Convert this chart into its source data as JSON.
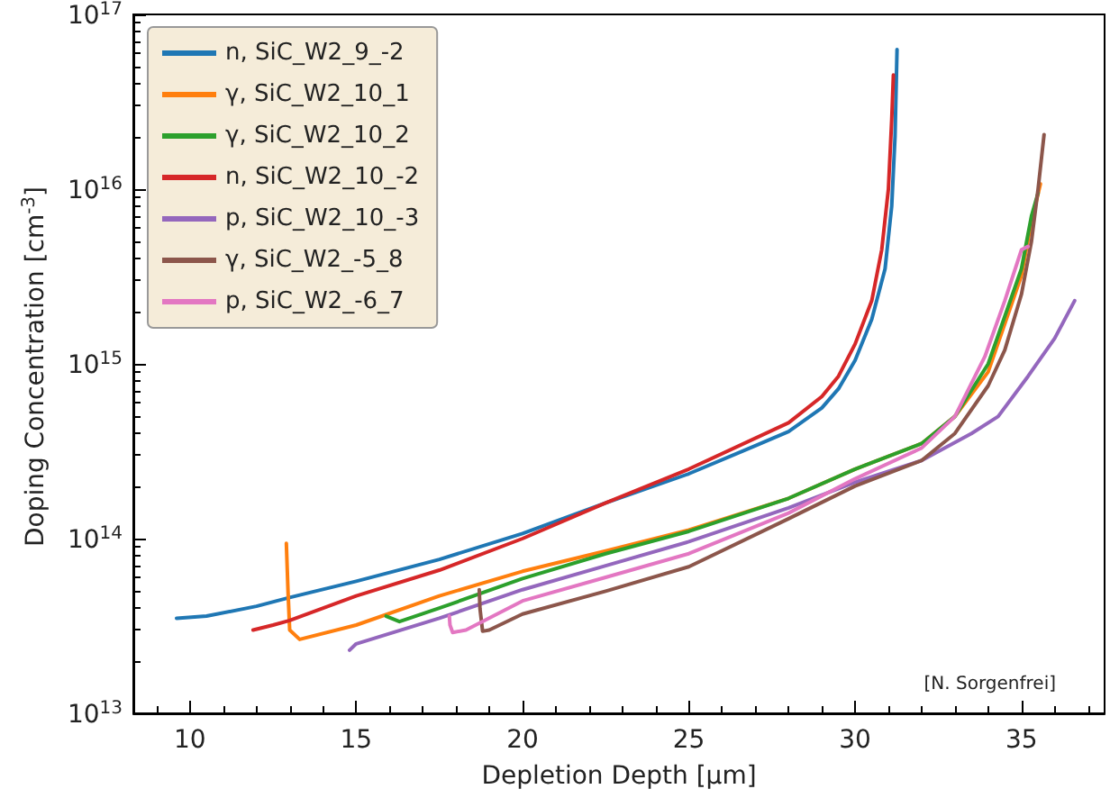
{
  "chart_data": {
    "type": "line",
    "xlabel": "Depletion Depth [µm]",
    "ylabel": "Doping Concentration [cm$^{-3}$]",
    "log": "y",
    "grid": false,
    "legend": "top left",
    "marker": "none",
    "line_style": "solid",
    "xlim": [
      8.3,
      37.5
    ],
    "xticks": [
      10,
      15,
      20,
      25,
      30,
      35
    ],
    "ylim": [
      10000000000000.0,
      1e+17
    ],
    "yticks": [
      {
        "value": 10000000000000.0,
        "label": "10$^{13}$"
      },
      {
        "value": 100000000000000.0,
        "label": "10$^{14}$"
      },
      {
        "value": 1000000000000000.0,
        "label": "10$^{15}$"
      },
      {
        "value": 1e+16,
        "label": "10$^{16}$"
      },
      {
        "value": 1e+17,
        "label": "10$^{17}$"
      }
    ],
    "annotations": [
      "[N. Sorgenfrei]"
    ],
    "series": [
      {
        "name": "n, SiC_W2_9_-2",
        "color": "#1f77b4",
        "x": [
          9.6,
          10.5,
          12,
          13,
          15,
          17.5,
          20,
          22.5,
          25,
          27,
          28,
          29,
          29.5,
          30,
          30.5,
          30.9,
          31.1,
          31.2,
          31.26
        ],
        "values": [
          35000000000000.0,
          36000000000000.0,
          41000000000000.0,
          46000000000000.0,
          57000000000000.0,
          76000000000000.0,
          107000000000000.0,
          160000000000000.0,
          235000000000000.0,
          340000000000000.0,
          410000000000000.0,
          560000000000000.0,
          720000000000000.0,
          1050000000000000.0,
          1800000000000000.0,
          3500000000000000.0,
          8000000000000000.0,
          2e+16,
          6.3e+16
        ]
      },
      {
        "name": "γ, SiC_W2_10_1",
        "color": "#ff7f0e",
        "x": [
          12.9,
          12.95,
          13.0,
          13.3,
          15,
          17.5,
          20,
          22.5,
          25,
          28,
          30,
          32,
          33,
          34,
          35,
          35.3,
          35.57
        ],
        "values": [
          94000000000000.0,
          50000000000000.0,
          30000000000000.0,
          26500000000000.0,
          32000000000000.0,
          47000000000000.0,
          65000000000000.0,
          85000000000000.0,
          112000000000000.0,
          170000000000000.0,
          250000000000000.0,
          350000000000000.0,
          500000000000000.0,
          900000000000000.0,
          3200000000000000.0,
          6500000000000000.0,
          1.07e+16
        ]
      },
      {
        "name": "γ, SiC_W2_10_2",
        "color": "#2ca02c",
        "x": [
          15.9,
          16.3,
          17.5,
          20,
          22.5,
          25,
          28,
          30,
          32,
          33,
          34,
          35,
          35.3,
          35.5
        ],
        "values": [
          36000000000000.0,
          33500000000000.0,
          40000000000000.0,
          59000000000000.0,
          82000000000000.0,
          110000000000000.0,
          170000000000000.0,
          250000000000000.0,
          350000000000000.0,
          500000000000000.0,
          1000000000000000.0,
          3500000000000000.0,
          7000000000000000.0,
          9500000000000000.0
        ]
      },
      {
        "name": "n, SiC_W2_10_-2",
        "color": "#d62728",
        "x": [
          11.9,
          12.5,
          13,
          15,
          17.5,
          20,
          22.5,
          25,
          28,
          29,
          29.5,
          30,
          30.5,
          30.8,
          31,
          31.1,
          31.15
        ],
        "values": [
          30000000000000.0,
          32000000000000.0,
          34000000000000.0,
          47000000000000.0,
          66000000000000.0,
          100000000000000.0,
          160000000000000.0,
          250000000000000.0,
          460000000000000.0,
          650000000000000.0,
          850000000000000.0,
          1300000000000000.0,
          2300000000000000.0,
          4500000000000000.0,
          1e+16,
          2.5e+16,
          4.5e+16
        ]
      },
      {
        "name": "p, SiC_W2_10_-3",
        "color": "#9467bd",
        "x": [
          14.8,
          15,
          17.5,
          20,
          22.5,
          25,
          28,
          30,
          32,
          33.5,
          34.3,
          35.2,
          36,
          36.6
        ],
        "values": [
          23000000000000.0,
          25000000000000.0,
          35000000000000.0,
          51000000000000.0,
          70000000000000.0,
          96000000000000.0,
          150000000000000.0,
          210000000000000.0,
          280000000000000.0,
          400000000000000.0,
          500000000000000.0,
          850000000000000.0,
          1400000000000000.0,
          2300000000000000.0
        ]
      },
      {
        "name": "γ, SiC_W2_-5_8",
        "color": "#8c564b",
        "x": [
          18.7,
          18.72,
          18.8,
          19,
          20,
          22.5,
          25,
          28,
          30,
          32,
          33,
          34,
          34.5,
          35,
          35.3,
          35.5,
          35.68
        ],
        "values": [
          51000000000000.0,
          40000000000000.0,
          29500000000000.0,
          30000000000000.0,
          37000000000000.0,
          50000000000000.0,
          69000000000000.0,
          130000000000000.0,
          200000000000000.0,
          280000000000000.0,
          400000000000000.0,
          750000000000000.0,
          1200000000000000.0,
          2500000000000000.0,
          5000000000000000.0,
          1e+16,
          2.05e+16
        ]
      },
      {
        "name": "p, SiC_W2_-6_7",
        "color": "#e377c2",
        "x": [
          17.8,
          17.82,
          17.9,
          18.3,
          20,
          22.5,
          25,
          28,
          30,
          32,
          33,
          33.9,
          34.5,
          35,
          35.2
        ],
        "values": [
          36000000000000.0,
          32000000000000.0,
          29000000000000.0,
          30000000000000.0,
          44000000000000.0,
          60000000000000.0,
          82000000000000.0,
          140000000000000.0,
          220000000000000.0,
          330000000000000.0,
          500000000000000.0,
          1100000000000000.0,
          2300000000000000.0,
          4500000000000000.0,
          4700000000000000.0
        ]
      }
    ]
  }
}
